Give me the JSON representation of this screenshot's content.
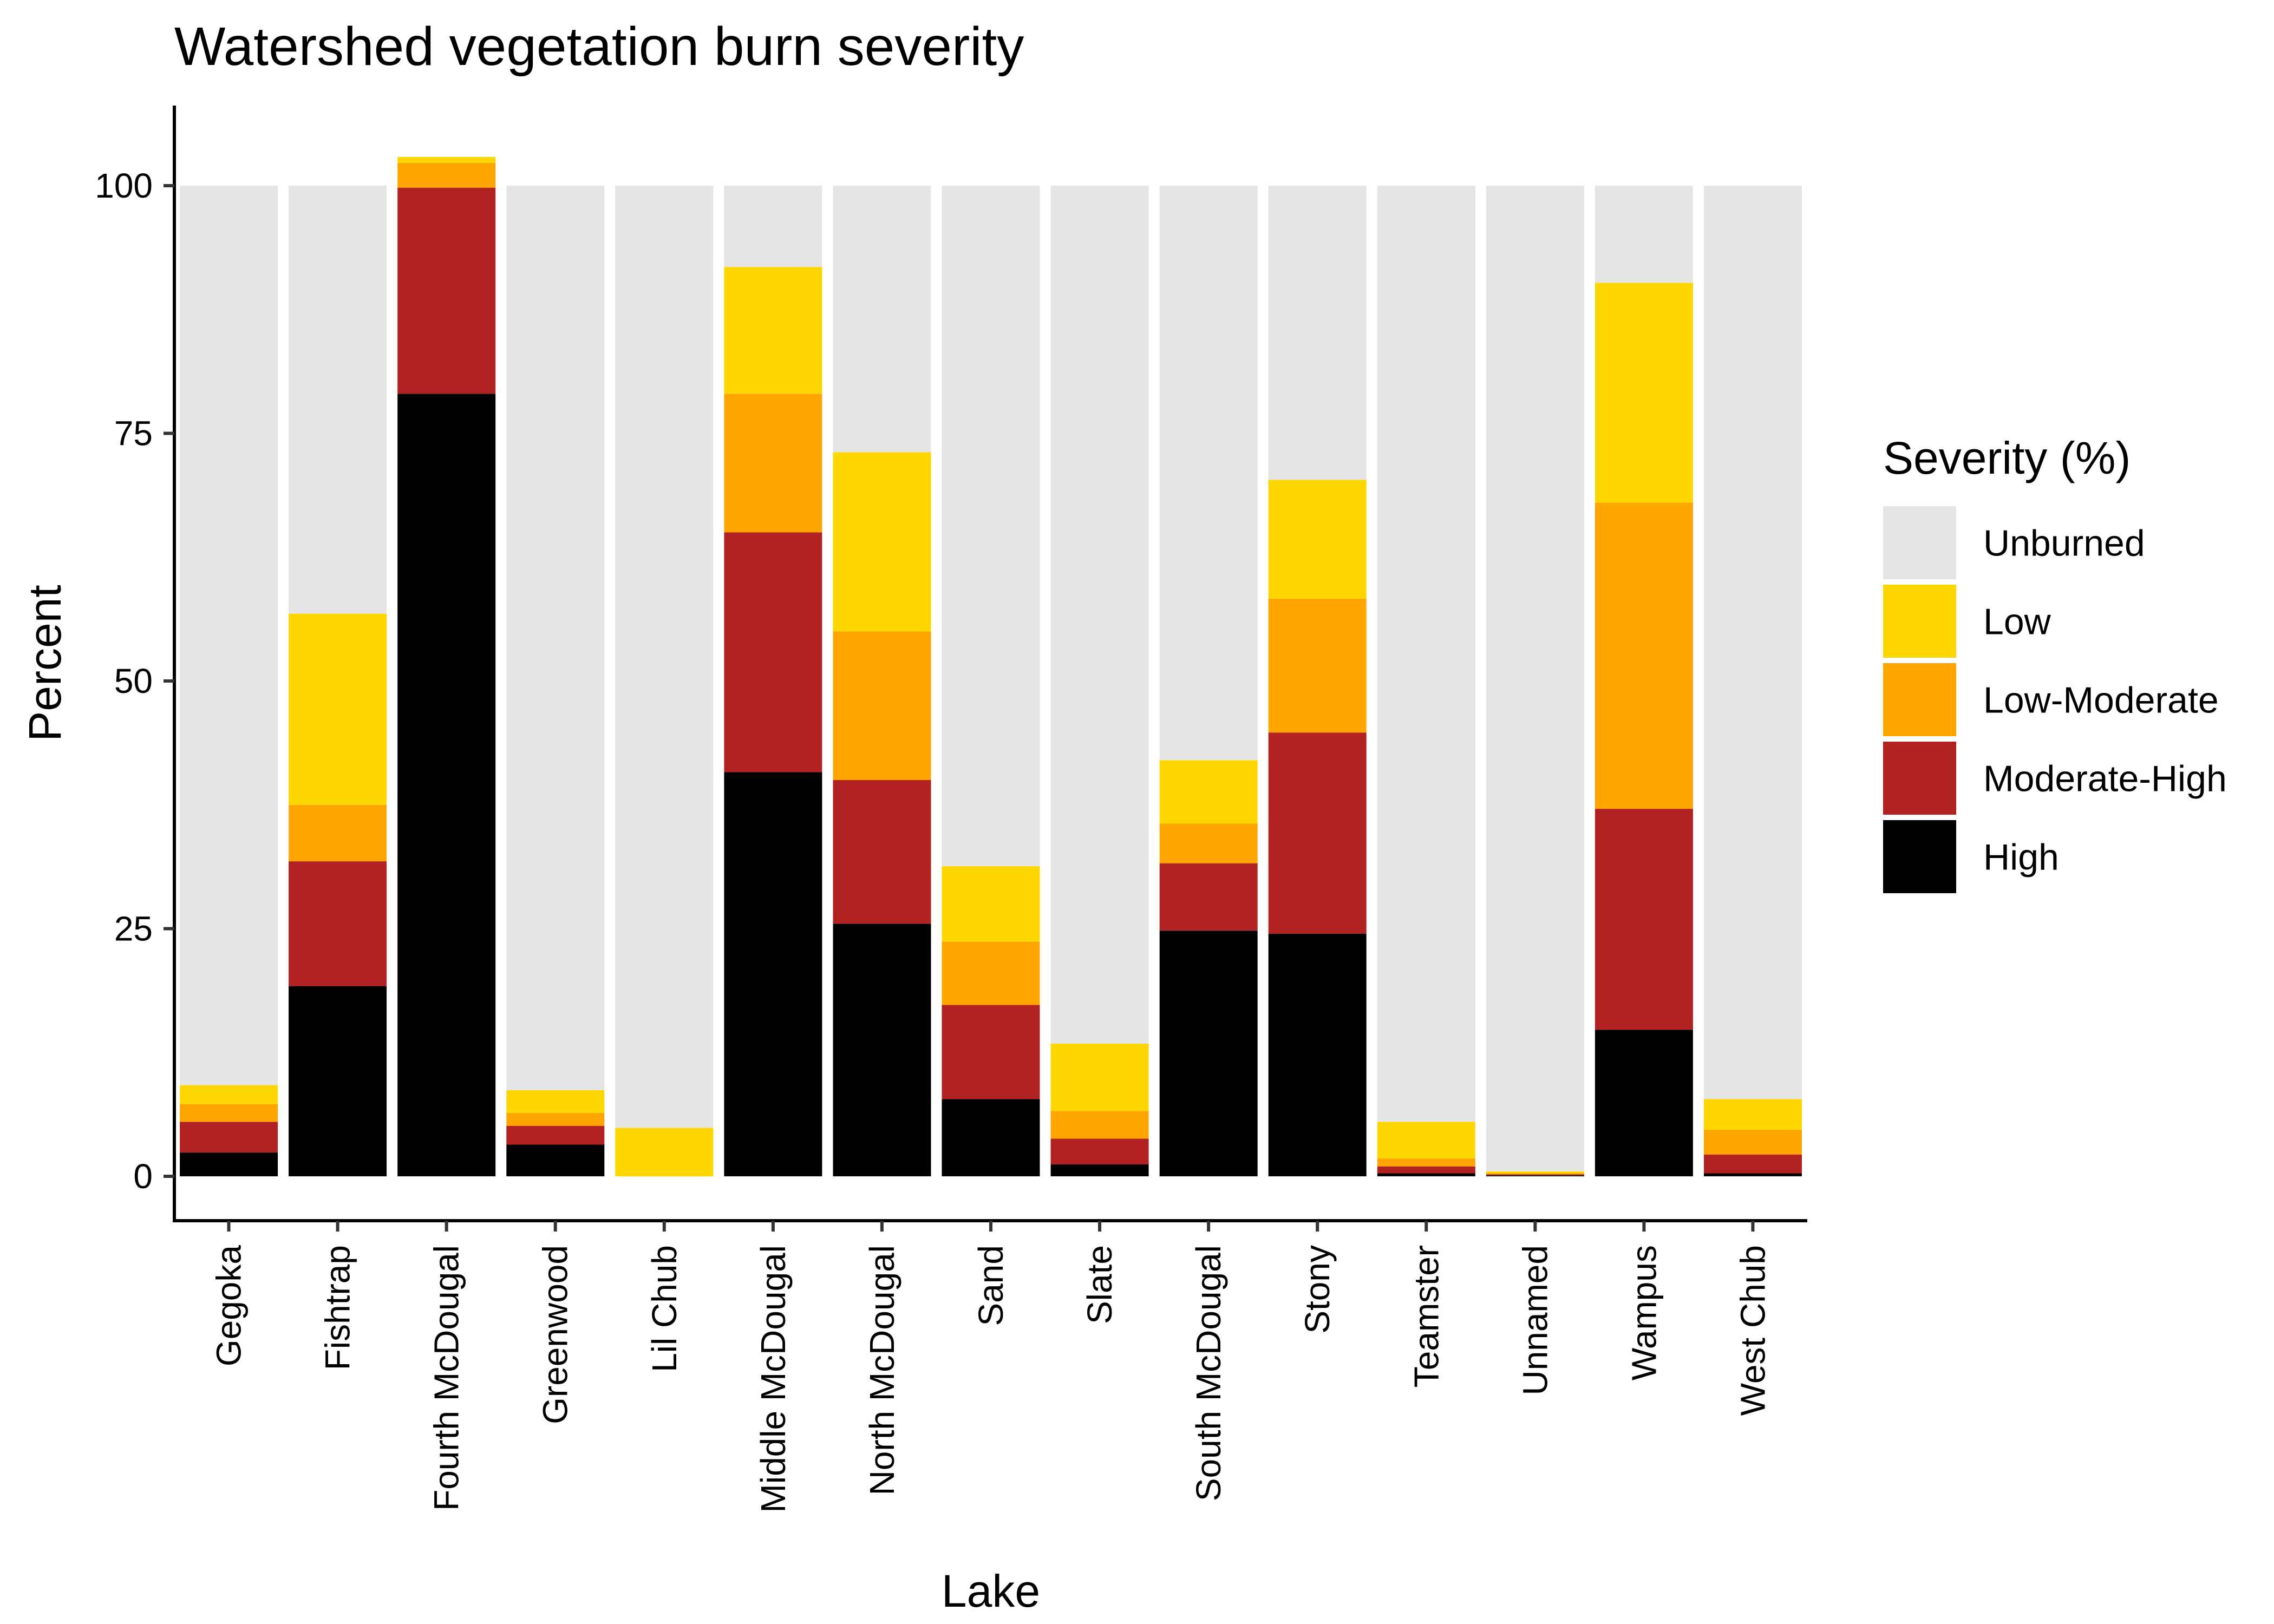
{
  "chart_data": {
    "type": "stacked-bar",
    "title": "Watershed vegetation burn severity",
    "xlabel": "Lake",
    "ylabel": "Percent",
    "ylim": [
      -5,
      107
    ],
    "yticks": [
      0,
      25,
      50,
      75,
      100
    ],
    "grid": false,
    "legend_title": "Severity (%)",
    "legend_position": "right",
    "categories": [
      "Gegoka",
      "Fishtrap",
      "Fourth McDougal",
      "Greenwood",
      "Lil Chub",
      "Middle McDougal",
      "North McDougal",
      "Sand",
      "Slate",
      "South McDougal",
      "Stony",
      "Teamster",
      "Unnamed",
      "Wampus",
      "West Chub"
    ],
    "series": [
      {
        "name": "High",
        "color": "#000000",
        "values": [
          2.4,
          19.2,
          79.0,
          3.2,
          0,
          40.8,
          25.5,
          7.8,
          1.2,
          24.8,
          24.5,
          0.3,
          0.1,
          14.8,
          0.3
        ]
      },
      {
        "name": "Moderate-High",
        "color": "#B22222",
        "values": [
          3.1,
          12.6,
          20.8,
          1.9,
          0,
          24.2,
          14.5,
          9.5,
          2.6,
          6.8,
          20.3,
          0.7,
          0.1,
          22.3,
          1.9
        ]
      },
      {
        "name": "Low-Moderate",
        "color": "#FFA500",
        "values": [
          1.8,
          5.7,
          2.5,
          1.3,
          0,
          14.0,
          15.0,
          6.4,
          2.8,
          4.0,
          13.5,
          0.8,
          0.1,
          30.9,
          2.5
        ]
      },
      {
        "name": "Low",
        "color": "#FFD700",
        "values": [
          1.9,
          19.3,
          0.6,
          2.3,
          4.9,
          12.8,
          18.1,
          7.6,
          6.8,
          6.4,
          12.0,
          3.7,
          0.2,
          22.2,
          3.1
        ]
      },
      {
        "name": "Unburned",
        "color": "#E5E5E5",
        "values": [
          90.8,
          43.2,
          0.0,
          91.3,
          95.1,
          8.2,
          26.9,
          68.7,
          86.6,
          58.0,
          29.7,
          94.5,
          99.5,
          9.8,
          92.2
        ]
      }
    ],
    "legend_order": [
      "Unburned",
      "Low",
      "Low-Moderate",
      "Moderate-High",
      "High"
    ]
  }
}
